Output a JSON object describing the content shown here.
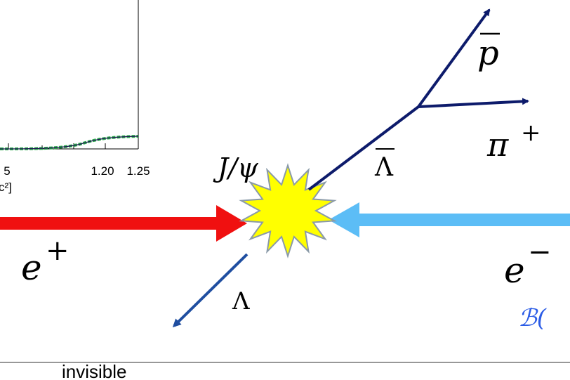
{
  "plot": {
    "tick_labels": [
      "5",
      "1.20",
      "1.25"
    ],
    "axis_label": "c²]"
  },
  "labels": {
    "jpsi": "J/ψ",
    "lambda_bar": "Λ",
    "p_bar": "p",
    "pi": "π",
    "pi_charge": "+",
    "e_plus": "e",
    "e_plus_charge": "+",
    "e_minus": "e",
    "e_minus_charge": "−",
    "lambda": "Λ",
    "branching": "ℬ(",
    "invisible": "invisible"
  }
}
